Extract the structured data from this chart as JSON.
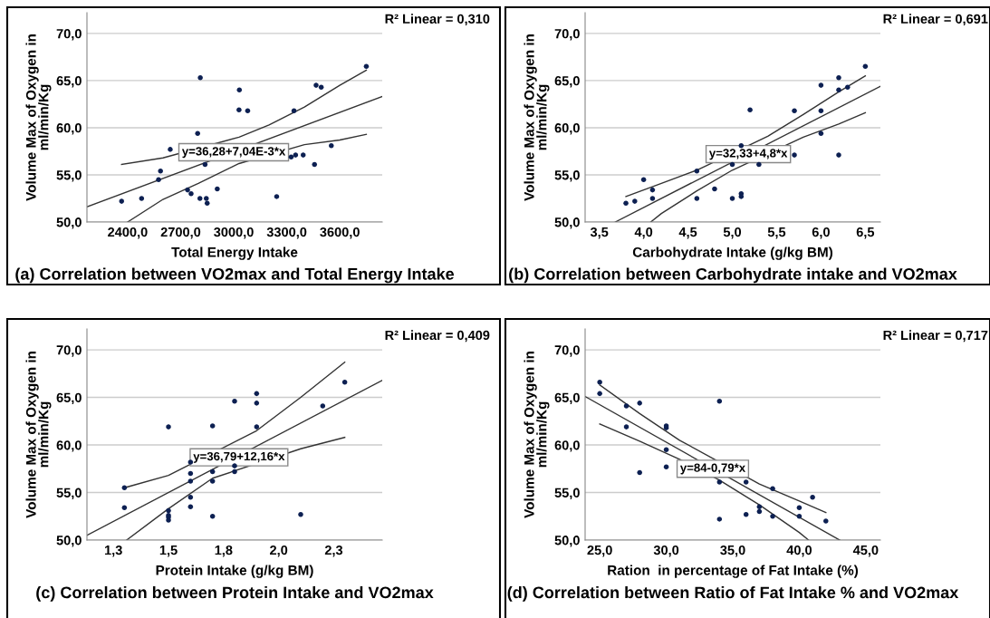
{
  "chart_data": [
    {
      "type": "scatter",
      "title": "(a) Correlation between VO2max and Total Energy Intake",
      "xlabel": "Total Energy Intake",
      "ylabel": "Volume Max of Oxygen in\nml/min/Kg",
      "annotations": [
        "R² Linear = 0,310",
        {
          "text": "y=36,28+7,04E-3*x",
          "x": 3000,
          "y": 57.4
        }
      ],
      "xlim": [
        2170,
        3840
      ],
      "ylim": [
        50,
        72.2
      ],
      "xticks": [
        {
          "value": 2400,
          "label": "2400,0"
        },
        {
          "value": 2700,
          "label": "2700,0"
        },
        {
          "value": 3000,
          "label": "3000,0"
        },
        {
          "value": 3300,
          "label": "3300,0"
        },
        {
          "value": 3600,
          "label": "3600,0"
        }
      ],
      "yticks": [
        {
          "value": 50,
          "label": "50,0"
        },
        {
          "value": 55,
          "label": "55,0"
        },
        {
          "value": 60,
          "label": "60,0"
        },
        {
          "value": 65,
          "label": "65,0"
        },
        {
          "value": 70,
          "label": "70,0"
        }
      ],
      "grid": "y",
      "legend": false,
      "line_style": "solid",
      "series": [
        {
          "type": "scatter",
          "marker": "circle",
          "color": "#0d2052",
          "x": [
            2366,
            2479,
            2575,
            2586,
            2641,
            2739,
            2759,
            2796,
            2811,
            2809,
            2838,
            2845,
            2850,
            2907,
            3032,
            3030,
            3079,
            3243,
            3325,
            3341,
            3350,
            3393,
            3457,
            3466,
            3495,
            3552,
            3750
          ],
          "values": [
            52.2,
            52.5,
            54.5,
            55.4,
            57.7,
            53.4,
            53.0,
            59.4,
            65.3,
            52.5,
            56.1,
            52.5,
            52.0,
            53.5,
            64.0,
            61.9,
            61.8,
            52.7,
            56.9,
            61.8,
            57.1,
            57.1,
            56.1,
            64.5,
            64.3,
            58.1,
            66.5
          ]
        },
        {
          "type": "line",
          "marker": "none",
          "color": "#333333",
          "x": [
            2170,
            3840
          ],
          "values": [
            51.6,
            63.3
          ]
        },
        {
          "type": "line",
          "marker": "none",
          "color": "#333333",
          "x": [
            2366,
            2600,
            3030,
            3200,
            3400,
            3600,
            3750
          ],
          "values": [
            56.1,
            56.8,
            59.0,
            60.3,
            62.2,
            64.5,
            66.1
          ]
        },
        {
          "type": "line",
          "marker": "none",
          "color": "#333333",
          "x": [
            2400,
            2600,
            2800,
            3030,
            3400,
            3600,
            3750
          ],
          "values": [
            50.0,
            52.4,
            54.1,
            56.2,
            58.2,
            58.7,
            59.3
          ]
        }
      ]
    },
    {
      "type": "scatter",
      "title": "(b) Correlation between Carbohydrate intake and VO2max",
      "xlabel": "Carbohydrate Intake (g/kg BM)",
      "ylabel": "Volume Max of Oxygen in\nml/min/Kg",
      "annotations": [
        "R² Linear = 0,691",
        {
          "text": "y=32,33+4,8*x",
          "x": 5.18,
          "y": 57.2
        }
      ],
      "xlim": [
        3.34,
        6.67
      ],
      "ylim": [
        50,
        72.2
      ],
      "xticks": [
        {
          "value": 3.5,
          "label": "3,5"
        },
        {
          "value": 4.0,
          "label": "4,0"
        },
        {
          "value": 4.5,
          "label": "4,5"
        },
        {
          "value": 5.0,
          "label": "5,0"
        },
        {
          "value": 5.5,
          "label": "5,5"
        },
        {
          "value": 6.0,
          "label": "6,0"
        },
        {
          "value": 6.5,
          "label": "6,5"
        }
      ],
      "yticks": [
        {
          "value": 50,
          "label": "50,0"
        },
        {
          "value": 55,
          "label": "55,0"
        },
        {
          "value": 60,
          "label": "60,0"
        },
        {
          "value": 65,
          "label": "65,0"
        },
        {
          "value": 70,
          "label": "70,0"
        }
      ],
      "grid": "y",
      "legend": false,
      "line_style": "solid",
      "series": [
        {
          "type": "scatter",
          "marker": "circle",
          "color": "#0d2052",
          "x": [
            3.8,
            3.9,
            4.0,
            4.1,
            4.1,
            4.6,
            4.6,
            4.8,
            5.0,
            5.0,
            5.1,
            5.1,
            5.1,
            5.2,
            5.3,
            5.7,
            5.7,
            6.0,
            6.0,
            6.0,
            6.2,
            6.2,
            6.2,
            6.3,
            6.5
          ],
          "values": [
            52.0,
            52.2,
            54.5,
            53.4,
            52.5,
            55.4,
            52.5,
            53.5,
            52.5,
            56.1,
            53.0,
            52.7,
            58.1,
            61.9,
            56.1,
            61.8,
            57.1,
            64.5,
            61.8,
            59.4,
            65.3,
            64.0,
            57.1,
            64.3,
            66.5
          ]
        },
        {
          "type": "line",
          "marker": "none",
          "color": "#333333",
          "x": [
            3.68,
            6.67
          ],
          "values": [
            50.0,
            64.4
          ]
        },
        {
          "type": "line",
          "marker": "none",
          "color": "#333333",
          "x": [
            3.8,
            4.2,
            4.6,
            5.4,
            5.8,
            6.2,
            6.5
          ],
          "values": [
            52.7,
            54.1,
            55.5,
            59.1,
            61.4,
            63.8,
            65.5
          ]
        },
        {
          "type": "line",
          "marker": "none",
          "color": "#333333",
          "x": [
            4.08,
            4.2,
            4.6,
            5.0,
            5.8,
            6.2,
            6.5
          ],
          "values": [
            50.0,
            50.9,
            53.3,
            55.5,
            59.0,
            60.4,
            61.6
          ]
        }
      ]
    },
    {
      "type": "scatter",
      "title": "(c) Correlation between Protein Intake and VO2max",
      "xlabel": "Protein Intake (g/kg BM)",
      "ylabel": "Volume Max of Oxygen in\nml/min/Kg",
      "annotations": [
        "R² Linear = 0,409",
        {
          "text": "y=36,79+12,16*x",
          "x": 1.82,
          "y": 58.7
        }
      ],
      "xlim": [
        1.13,
        2.47
      ],
      "ylim": [
        50,
        72.2
      ],
      "xticks": [
        {
          "value": 1.25,
          "label": "1,3"
        },
        {
          "value": 1.5,
          "label": "1,5"
        },
        {
          "value": 1.75,
          "label": "1,8"
        },
        {
          "value": 2.0,
          "label": "2,0"
        },
        {
          "value": 2.25,
          "label": "2,3"
        }
      ],
      "yticks": [
        {
          "value": 50,
          "label": "50,0"
        },
        {
          "value": 55,
          "label": "55,0"
        },
        {
          "value": 60,
          "label": "60,0"
        },
        {
          "value": 65,
          "label": "65,0"
        },
        {
          "value": 70,
          "label": "70,0"
        }
      ],
      "grid": "y",
      "legend": false,
      "line_style": "solid",
      "series": [
        {
          "type": "scatter",
          "marker": "circle",
          "color": "#0d2052",
          "x": [
            1.3,
            1.3,
            1.5,
            1.5,
            1.5,
            1.5,
            1.5,
            1.6,
            1.6,
            1.6,
            1.6,
            1.6,
            1.7,
            1.7,
            1.7,
            1.7,
            1.8,
            1.8,
            1.8,
            1.9,
            1.9,
            1.9,
            2.1,
            2.2,
            2.3
          ],
          "values": [
            55.5,
            53.4,
            61.9,
            53.1,
            52.6,
            52.4,
            52.1,
            58.2,
            57.0,
            56.2,
            54.5,
            53.5,
            62.0,
            57.2,
            56.2,
            52.5,
            64.6,
            57.8,
            57.2,
            65.4,
            64.4,
            61.9,
            52.7,
            64.1,
            66.6
          ]
        },
        {
          "type": "line",
          "marker": "none",
          "color": "#333333",
          "x": [
            1.13,
            2.47
          ],
          "values": [
            50.5,
            66.8
          ]
        },
        {
          "type": "line",
          "marker": "none",
          "color": "#333333",
          "x": [
            1.3,
            1.5,
            1.9,
            2.1,
            2.3
          ],
          "values": [
            55.5,
            56.8,
            61.5,
            65.0,
            68.7
          ]
        },
        {
          "type": "line",
          "marker": "none",
          "color": "#333333",
          "x": [
            1.31,
            1.5,
            1.7,
            2.1,
            2.3
          ],
          "values": [
            50.0,
            53.3,
            56.5,
            59.6,
            60.8
          ]
        }
      ]
    },
    {
      "type": "scatter",
      "title": "(d) Correlation between Ratio of Fat Intake % and VO2max",
      "xlabel": "Ration  in percentage of Fat Intake (%)",
      "ylabel": "Volume Max of Oxygen in\nml/min/Kg",
      "annotations": [
        "R² Linear = 0,717",
        {
          "text": "y=84-0,79*x",
          "x": 33.5,
          "y": 57.5
        }
      ],
      "xlim": [
        23.9,
        46.1
      ],
      "ylim": [
        50,
        72.2
      ],
      "xticks": [
        {
          "value": 25,
          "label": "25,0"
        },
        {
          "value": 30,
          "label": "30,0"
        },
        {
          "value": 35,
          "label": "35,0"
        },
        {
          "value": 40,
          "label": "40,0"
        },
        {
          "value": 45,
          "label": "45,0"
        }
      ],
      "yticks": [
        {
          "value": 50,
          "label": "50,0"
        },
        {
          "value": 55,
          "label": "55,0"
        },
        {
          "value": 60,
          "label": "60,0"
        },
        {
          "value": 65,
          "label": "65,0"
        },
        {
          "value": 70,
          "label": "70,0"
        }
      ],
      "grid": "y",
      "legend": false,
      "line_style": "solid",
      "series": [
        {
          "type": "scatter",
          "marker": "circle",
          "color": "#0d2052",
          "x": [
            25,
            25,
            27,
            27,
            28,
            28,
            30,
            30,
            30,
            30,
            34,
            34,
            34,
            36,
            36,
            37,
            37,
            38,
            38,
            40,
            40,
            41,
            42
          ],
          "values": [
            66.6,
            65.4,
            64.1,
            61.9,
            64.4,
            57.1,
            62.0,
            61.8,
            59.5,
            57.7,
            64.6,
            56.1,
            52.2,
            56.1,
            52.7,
            53.5,
            53.0,
            55.4,
            52.5,
            53.4,
            52.5,
            54.5,
            52.0
          ]
        },
        {
          "type": "line",
          "marker": "none",
          "color": "#333333",
          "x": [
            23.9,
            43.04
          ],
          "values": [
            65.1,
            50.0
          ]
        },
        {
          "type": "line",
          "marker": "none",
          "color": "#333333",
          "x": [
            25,
            28,
            31,
            37,
            40,
            42
          ],
          "values": [
            66.3,
            63.3,
            60.5,
            55.9,
            54.1,
            52.9
          ]
        },
        {
          "type": "line",
          "marker": "none",
          "color": "#333333",
          "x": [
            25,
            28,
            31,
            34,
            37,
            40,
            40.7
          ],
          "values": [
            62.2,
            60.4,
            58.5,
            56.3,
            53.7,
            50.8,
            50.0
          ]
        }
      ]
    }
  ]
}
